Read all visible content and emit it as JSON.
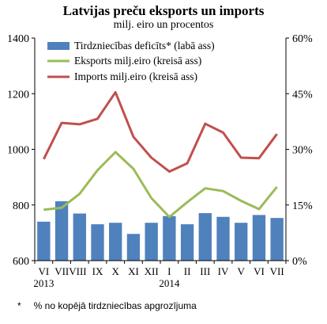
{
  "header": {
    "title": "Latvijas preču eksports un imports",
    "subtitle": "milj. eiro un procentos"
  },
  "footnote": {
    "marker": "*",
    "text": "% no kopējā tirdzniecības apgrozījuma"
  },
  "chart_data": {
    "type": "bar",
    "categories": [
      "VI",
      "VII",
      "VIII",
      "IX",
      "X",
      "XI",
      "XII",
      "I",
      "II",
      "III",
      "IV",
      "V",
      "VI",
      "VII"
    ],
    "category_display": [
      "VI",
      "VIIVIII",
      "",
      "IX",
      "X",
      "XI",
      "XII",
      "I",
      "II",
      "III",
      "IV",
      "V",
      "VI",
      "VII"
    ],
    "year_labels": [
      {
        "category_index": 0,
        "label": "2013"
      },
      {
        "category_index": 7,
        "label": "2014"
      }
    ],
    "y_left": {
      "min": 600,
      "max": 1400,
      "ticks": [
        "600",
        "800",
        "1000",
        "1200",
        "1400"
      ]
    },
    "y_right": {
      "min": 0,
      "max": 60,
      "ticks": [
        "0%",
        "15%",
        "30%",
        "45%",
        "60%"
      ]
    },
    "grid": false,
    "legend_position": "top-left",
    "series": [
      {
        "name": "Tirdzniecības deficīts* (labā ass)",
        "type": "bar",
        "axis": "right",
        "color": "#4F81BD",
        "values": [
          10.5,
          16,
          12.7,
          9.8,
          10.2,
          7.2,
          10.2,
          12,
          9.8,
          12.8,
          11.8,
          10.2,
          12.3,
          11.5
        ]
      },
      {
        "name": "Eksports milj.eiro (kreisā ass)",
        "type": "line",
        "axis": "left",
        "color": "#9BBB59",
        "values": [
          783,
          790,
          840,
          925,
          990,
          930,
          825,
          757,
          810,
          860,
          850,
          815,
          785,
          865
        ]
      },
      {
        "name": "Imports milj.eiro (kreisā ass)",
        "type": "line",
        "axis": "left",
        "color": "#C0504D",
        "values": [
          965,
          1095,
          1090,
          1110,
          1205,
          1045,
          970,
          920,
          950,
          1092,
          1060,
          970,
          968,
          1055
        ]
      }
    ]
  }
}
